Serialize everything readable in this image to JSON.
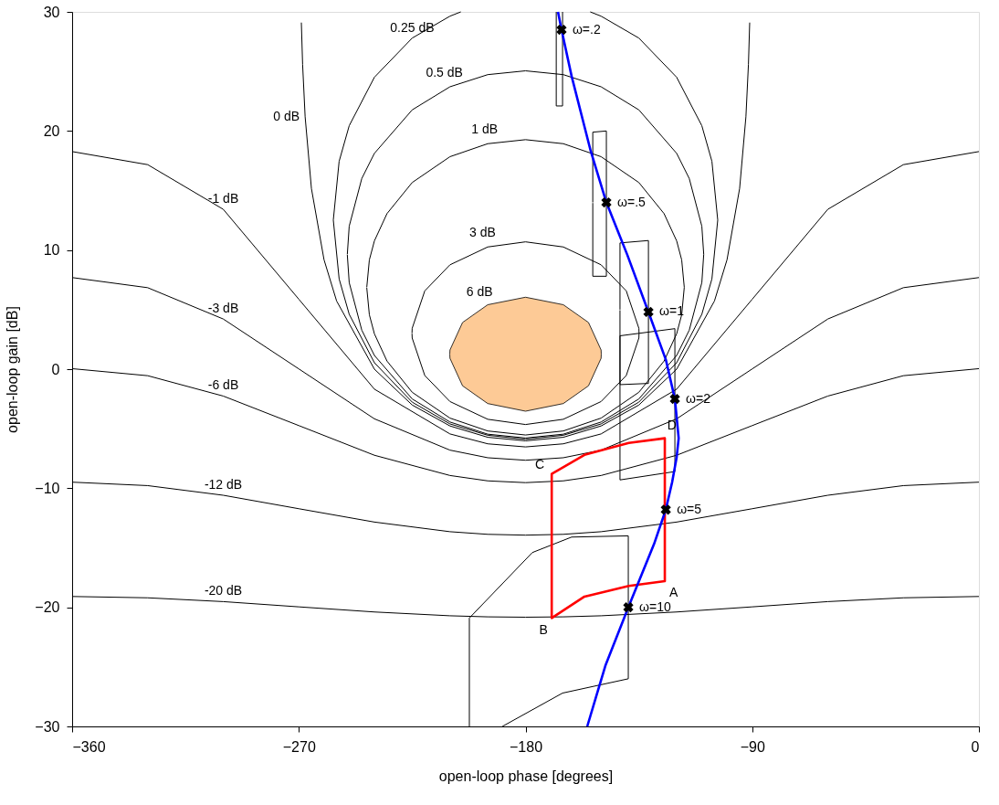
{
  "chart_data": {
    "type": "line",
    "xlabel": "open-loop phase [degrees]",
    "ylabel": "open-loop gain [dB]",
    "xlim": [
      -360,
      0
    ],
    "ylim": [
      -30,
      30
    ],
    "xticks": [
      -360,
      -270,
      -180,
      -90,
      0
    ],
    "yticks": [
      -30,
      -20,
      -10,
      0,
      10,
      20,
      30
    ],
    "grid": false,
    "series": [
      {
        "color": "#000000",
        "x": [
          -360,
          -330,
          -300,
          -270,
          -240,
          -210,
          -195,
          -180,
          -165,
          -150,
          -120,
          -90,
          -60,
          -30,
          0
        ],
        "values": [
          -19.09,
          -19.2,
          -19.52,
          -19.96,
          -20.39,
          -20.71,
          -20.8,
          -20.83,
          -20.8,
          -20.71,
          -20.39,
          -19.96,
          -19.52,
          -19.2,
          -19.09
        ]
      },
      {
        "color": "#000000",
        "x": [
          -360,
          -330,
          -300,
          -270,
          -240,
          -210,
          -195,
          -180,
          -165,
          -150,
          -120,
          -90,
          -60,
          -30,
          0
        ],
        "values": [
          -9.49,
          -9.78,
          -10.59,
          -11.72,
          -12.84,
          -13.65,
          -13.87,
          -13.94,
          -13.87,
          -13.65,
          -12.84,
          -11.72,
          -10.59,
          -9.78,
          -9.49
        ]
      },
      {
        "color": "#000000",
        "x": [
          -360,
          -330,
          -300,
          -270,
          -240,
          -210,
          -195,
          -180,
          -165,
          -150,
          -120,
          -90,
          -60,
          -30,
          0
        ],
        "values": [
          0.04,
          -0.55,
          -2.26,
          -4.74,
          -7.23,
          -8.93,
          -9.38,
          -9.53,
          -9.38,
          -8.93,
          -7.23,
          -4.74,
          -2.26,
          -0.55,
          0.04
        ]
      },
      {
        "color": "#000000",
        "x": [
          -360,
          -330,
          -300,
          -270,
          -240,
          -210,
          -195,
          -180,
          -165,
          -150,
          -120,
          -90,
          -60,
          -30,
          0
        ],
        "values": [
          7.69,
          6.84,
          4.21,
          0.02,
          -4.17,
          -6.8,
          -7.44,
          -7.65,
          -7.44,
          -6.8,
          -4.17,
          0.02,
          4.21,
          6.84,
          7.69
        ]
      },
      {
        "color": "#000000",
        "x": [
          -360,
          -330,
          -300,
          -270,
          -240,
          -210,
          -195,
          -180,
          -165,
          -150,
          -120,
          -90,
          -60,
          -30,
          0
        ],
        "values": [
          18.27,
          17.17,
          13.42,
          5.87,
          -1.68,
          -5.44,
          -6.27,
          -6.53,
          -6.27,
          -5.44,
          -1.68,
          5.87,
          13.42,
          17.17,
          18.27
        ]
      },
      {
        "color": "#000000",
        "x": [
          -269,
          -268.5,
          -267.5,
          -265,
          -260,
          -255,
          -240,
          -225,
          -210,
          -195,
          -180,
          -165,
          -150,
          -135,
          -120,
          -105,
          -100,
          -95,
          -92.5,
          -91.5,
          -91
        ],
        "values": [
          29.1,
          25.6,
          21.19,
          15.17,
          9.19,
          5.72,
          0,
          -3.01,
          -4.77,
          -5.72,
          -6.02,
          -5.72,
          -4.77,
          -3.01,
          0,
          5.72,
          9.19,
          15.17,
          21.19,
          25.6,
          29.1
        ]
      },
      {
        "color": "#000000",
        "x": [
          -205.7,
          -210,
          -225,
          -240,
          -250,
          -254,
          -256.31,
          -254,
          -250,
          -240,
          -225,
          -210,
          -195,
          -180,
          -165,
          -150,
          -135,
          -120,
          -110,
          -106,
          -103.69,
          -106,
          -110,
          -120,
          -135,
          -150,
          -154.3
        ],
        "values": [
          30,
          29.64,
          27.8,
          24.51,
          20.44,
          17.45,
          12.52,
          7.58,
          4.61,
          0.54,
          -2.77,
          -4.6,
          -5.55,
          -5.89,
          -5.55,
          -4.6,
          -2.77,
          0.54,
          4.61,
          7.58,
          12.52,
          17.45,
          20.44,
          24.51,
          27.8,
          29.64,
          30
        ]
      },
      {
        "color": "#000000",
        "x": [
          -250.75,
          -250,
          -245,
          -240,
          -225,
          -210,
          -195,
          -180,
          -165,
          -150,
          -135,
          -120,
          -115,
          -110,
          -109.25,
          -110,
          -115,
          -120,
          -135,
          -150,
          -165,
          -180,
          -195,
          -210,
          -225,
          -240,
          -245,
          -250,
          -250.75
        ],
        "values": [
          9.64,
          12.0,
          16.01,
          18.12,
          21.77,
          23.71,
          24.73,
          25.05,
          24.73,
          23.71,
          21.77,
          18.12,
          16.01,
          12.0,
          9.64,
          7.27,
          3.27,
          1.15,
          -2.5,
          -4.44,
          -5.46,
          -5.78,
          -5.46,
          -4.44,
          -2.5,
          1.15,
          3.27,
          7.27,
          9.6
        ]
      },
      {
        "color": "#000000",
        "x": [
          -243.03,
          -242,
          -240,
          -235,
          -225,
          -210,
          -195,
          -180,
          -165,
          -150,
          -135,
          -125,
          -120,
          -118,
          -116.97,
          -118,
          -120,
          -125,
          -135,
          -150,
          -165,
          -180,
          -195,
          -210,
          -225,
          -235,
          -240,
          -242,
          -243.03
        ],
        "values": [
          6.87,
          9.17,
          10.77,
          13.06,
          15.67,
          17.84,
          18.93,
          19.27,
          18.93,
          17.84,
          15.67,
          13.06,
          10.77,
          9.17,
          6.87,
          4.57,
          2.97,
          0.68,
          -1.94,
          -4.11,
          -5.19,
          -5.53,
          -5.19,
          -4.11,
          -1.94,
          0.68,
          2.97,
          4.57,
          6.83
        ]
      },
      {
        "color": "#000000",
        "x": [
          -225.07,
          -225,
          -220,
          -210,
          -195,
          -180,
          -165,
          -150,
          -140,
          -135,
          -134.93,
          -135,
          -140,
          -150,
          -165,
          -180,
          -195,
          -210,
          -220,
          -225,
          -225.07
        ],
        "values": [
          3.02,
          3.43,
          6.57,
          8.76,
          10.26,
          10.69,
          10.26,
          8.76,
          6.57,
          3.43,
          3.02,
          2.61,
          -0.53,
          -2.72,
          -4.21,
          -4.65,
          -4.21,
          -2.72,
          -0.53,
          2.61,
          2.98
        ]
      },
      {
        "type": "area",
        "color": "#fdca96",
        "x": [
          -210.07,
          -210,
          -205,
          -195,
          -180,
          -165,
          -155,
          -150,
          -149.93,
          -150,
          -155,
          -165,
          -180,
          -195,
          -205,
          -210,
          -210.07
        ],
        "values": [
          1.26,
          1.61,
          3.92,
          5.41,
          6.04,
          5.41,
          3.92,
          1.61,
          1.26,
          0.91,
          -1.4,
          -2.89,
          -3.53,
          -2.89,
          -1.4,
          0.91,
          1.22
        ]
      },
      {
        "color": "#000000",
        "x": [
          -167.8,
          -167.8,
          -165.3,
          -165.3
        ],
        "values": [
          30,
          22.1,
          22.1,
          30
        ]
      },
      {
        "color": "#000000",
        "x": [
          -153.3,
          -153.3,
          -147.9,
          -147.9,
          -153.3,
          -153.3
        ],
        "values": [
          14.0,
          19.9,
          20.0,
          7.8,
          7.8,
          13.95
        ]
      },
      {
        "color": "#000000",
        "x": [
          -142.5,
          -142.5,
          -131.2,
          -131.2,
          -142.5,
          -142.5
        ],
        "values": [
          5.0,
          10.6,
          10.8,
          -1.2,
          -1.3,
          4.95
        ]
      },
      {
        "color": "#000000",
        "x": [
          -142.5,
          -142.5,
          -120.7,
          -120.7,
          -142.5,
          -142.5
        ],
        "values": [
          -3.0,
          2.8,
          3.4,
          -8.6,
          -9.3,
          -3.05
        ]
      },
      {
        "color": "#000000",
        "x": [
          -189.2,
          -165.3,
          -139.2,
          -139.2,
          -161.7,
          -177.3,
          -202.3,
          -202.3
        ],
        "values": [
          -30,
          -27.2,
          -26.0,
          -14.0,
          -14.1,
          -15.4,
          -20.9,
          -30
        ]
      },
      {
        "color": "#ff0000",
        "x": [
          -124.7,
          -124.7,
          -139,
          -156.6,
          -169.6,
          -169.6,
          -156.6,
          -139,
          -124.7,
          -124.7
        ],
        "values": [
          -11.8,
          -17.8,
          -18.2,
          -19.1,
          -20.9,
          -8.8,
          -7.2,
          -6.2,
          -5.8,
          -12.0
        ]
      },
      {
        "color": "#0000ff",
        "x": [
          -167.1,
          -165.7,
          -161.7,
          -154.1,
          -147.9,
          -139.6,
          -131.2,
          -124.3,
          -120.7,
          -119.2,
          -120,
          -121.8,
          -124.3,
          -129.0,
          -139.2,
          -148.3,
          -155.5
        ],
        "values": [
          30,
          28.5,
          24.6,
          18.3,
          14.0,
          9.6,
          4.8,
          0.8,
          -2.5,
          -5.8,
          -7.4,
          -9.5,
          -11.8,
          -14.7,
          -20.0,
          -24.9,
          -30
        ]
      },
      {
        "type": "scatter",
        "marker": "cross",
        "color": "#000000",
        "x": [
          -165.7,
          -147.9,
          -131.2,
          -120.7,
          -124.3,
          -139.2
        ],
        "values": [
          28.5,
          14.0,
          4.8,
          -2.5,
          -11.8,
          -20.0
        ]
      }
    ],
    "annotations": [
      {
        "text": "0 dB",
        "x": -267.5,
        "y": 21.19
      },
      {
        "text": "0.25 dB",
        "x": -225,
        "y": 27.8
      },
      {
        "text": "0.5 dB",
        "x": -210,
        "y": 23.71
      },
      {
        "text": "1 dB",
        "x": -195,
        "y": 18.93
      },
      {
        "text": "3 dB",
        "x": -195,
        "y": 10.26
      },
      {
        "text": "6 dB",
        "x": -195,
        "y": 5.41
      },
      {
        "text": "-1 dB",
        "x": -300,
        "y": 13.42
      },
      {
        "text": "-3 dB",
        "x": -300,
        "y": 4.21
      },
      {
        "text": "-6 dB",
        "x": -300,
        "y": -2.26
      },
      {
        "text": "-12 dB",
        "x": -300,
        "y": -10.59
      },
      {
        "text": "-20 dB",
        "x": -300,
        "y": -19.52
      },
      {
        "text": "ω=.2",
        "x": -165.7,
        "y": 28.5
      },
      {
        "text": "ω=.5",
        "x": -147.9,
        "y": 14.0
      },
      {
        "text": "ω=1",
        "x": -131.2,
        "y": 4.8
      },
      {
        "text": "ω=2",
        "x": -120.7,
        "y": -2.5
      },
      {
        "text": "ω=5",
        "x": -124.3,
        "y": -11.8
      },
      {
        "text": "ω=10",
        "x": -139.2,
        "y": -20.0
      },
      {
        "text": "A",
        "x": -124.7,
        "y": -17.8
      },
      {
        "text": "B",
        "x": -169.6,
        "y": -20.9
      },
      {
        "text": "C",
        "x": -169.6,
        "y": -8.8
      },
      {
        "text": "D",
        "x": -124.7,
        "y": -5.8
      }
    ]
  }
}
